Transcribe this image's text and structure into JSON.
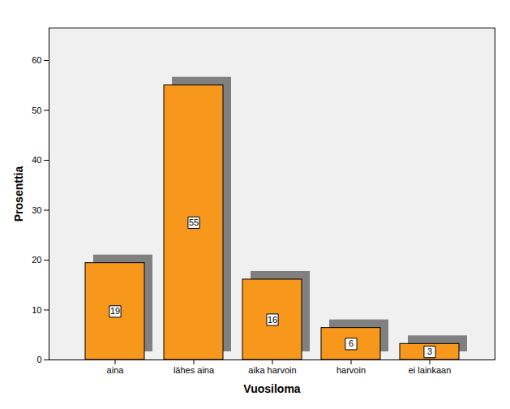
{
  "chart_data": {
    "type": "bar",
    "x_label": "Vuosiloma",
    "y_label": "Prosenttia",
    "categories": [
      "aina",
      "lähes aina",
      "aika harvoin",
      "harvoin",
      "ei lainkaan"
    ],
    "values": [
      19.4,
      55,
      16.1,
      6.4,
      3.2
    ],
    "value_labels": [
      "19",
      "55",
      "16",
      "6",
      "3"
    ],
    "data_labels": true,
    "color": "#f7981d",
    "ylim": [
      0,
      66.5
    ],
    "yticks": [
      0,
      10,
      20,
      30,
      40,
      50,
      60
    ],
    "grid": false
  }
}
